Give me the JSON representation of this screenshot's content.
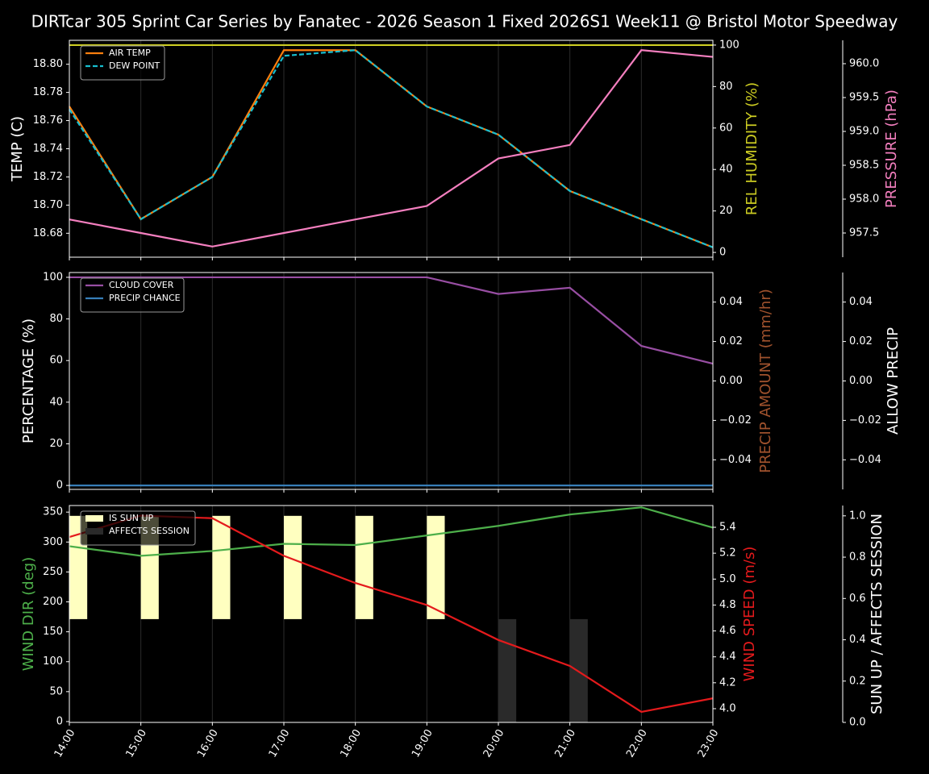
{
  "chart_data": [
    {
      "type": "line",
      "title": "DIRTcar 305 Sprint Car Series by Fanatec - 2026 Season 1 Fixed 2026S1 Week11 @ Bristol Motor Speedway",
      "ylabel": "TEMP (C)",
      "ylabel_color": "#ffffff",
      "y2label": "REL HUMIDITY (%)",
      "y2label_color": "#cccc22",
      "y3label": "PRESSURE (hPa)",
      "y3label_color": "#f47fbf",
      "ylim": [
        18.663,
        18.817
      ],
      "yticks": [
        18.68,
        {
          "value": 18.7,
          "label": "18.70"
        },
        18.72,
        18.74,
        18.76,
        18.78,
        {
          "value": 18.8,
          "label": "18.80"
        }
      ],
      "y2lim": [
        -2.3,
        102.3
      ],
      "y2ticks": [
        0,
        20,
        40,
        60,
        80,
        100
      ],
      "y3lim": [
        957.143,
        960.345
      ],
      "y3ticks": [
        957.5,
        {
          "value": 958,
          "label": "958.0"
        },
        958.5,
        {
          "value": 959,
          "label": "959.0"
        },
        959.5,
        {
          "value": 960,
          "label": "960.0"
        }
      ],
      "grid": "x",
      "legend": "upper left",
      "series": [
        {
          "name": "AIR TEMP",
          "color": "#ff7f0e",
          "values": [
            18.77,
            18.69,
            18.72,
            18.81,
            18.81,
            18.77,
            18.75,
            18.71,
            18.69,
            18.67
          ]
        },
        {
          "name": "DEW POINT",
          "color": "#17becf",
          "dashed": true,
          "values": [
            18.768,
            18.69,
            18.72,
            18.806,
            18.81,
            18.77,
            18.75,
            18.71,
            18.69,
            18.67
          ]
        },
        {
          "color": "#cccc22",
          "axis": "y2",
          "values": [
            100,
            100,
            100,
            100,
            100,
            100,
            100,
            100,
            100,
            100
          ]
        },
        {
          "color": "#f47fbf",
          "axis": "y3",
          "values": [
            957.7,
            957.5,
            957.3,
            957.5,
            957.7,
            957.9,
            958.6,
            958.8,
            960.2,
            960.1
          ]
        }
      ]
    },
    {
      "type": "line",
      "ylabel": "PERCENTAGE (%)",
      "ylabel_color": "#ffffff",
      "y2label": "PRECIP AMOUNT (mm/hr)",
      "y2label_color": "#a0522d",
      "y3label": "ALLOW PRECIP",
      "y3label_color": "#ffffff",
      "ylim": [
        -1.9,
        102.3
      ],
      "yticks": [
        0,
        20,
        40,
        60,
        80,
        100
      ],
      "y2lim": [
        -0.055,
        0.055
      ],
      "y2ticks": [
        {
          "value": -0.04,
          "label": "−0.04"
        },
        {
          "value": -0.02,
          "label": "−0.02"
        },
        {
          "value": 0,
          "label": "0.00"
        },
        0.02,
        0.04
      ],
      "y3lim": [
        -0.055,
        0.055
      ],
      "y3ticks": [
        {
          "value": -0.04,
          "label": "−0.04"
        },
        {
          "value": -0.02,
          "label": "−0.02"
        },
        {
          "value": 0,
          "label": "0.00"
        },
        0.02,
        0.04
      ],
      "grid": "x",
      "legend": "upper left",
      "series": [
        {
          "name": "CLOUD COVER",
          "color": "#984ea3",
          "values": [
            100,
            100,
            100,
            100,
            100,
            100,
            92,
            95,
            67,
            58.5
          ]
        },
        {
          "name": "PRECIP CHANCE",
          "color": "#377eb8",
          "values": [
            0,
            0,
            0,
            0,
            0,
            0,
            0,
            0,
            0,
            0
          ]
        }
      ]
    },
    {
      "type": "line",
      "categories": [
        "14:00",
        "15:00",
        "16:00",
        "17:00",
        "18:00",
        "19:00",
        "20:00",
        "21:00",
        "22:00",
        "23:00"
      ],
      "ylabel": "WIND DIR (deg)",
      "ylabel_color": "#4daf4a",
      "y2label": "WIND SPEED (m/s)",
      "y2label_color": "#e41a1c",
      "y3label": "SUN UP / AFFECTS SESSION",
      "y3label_color": "#ffffff",
      "ylim": [
        -1.4,
        361
      ],
      "yticks": [
        0,
        50,
        100,
        150,
        200,
        250,
        300,
        350
      ],
      "y2lim": [
        3.894,
        5.568
      ],
      "y2ticks": [
        {
          "value": 4,
          "label": "4.0"
        },
        4.2,
        4.4,
        4.6,
        4.8,
        {
          "value": 5,
          "label": "5.0"
        },
        5.2,
        5.4
      ],
      "y3lim": [
        0,
        1.05
      ],
      "y3ticks": [
        {
          "value": 0,
          "label": "0.0"
        },
        0.2,
        0.4,
        0.6,
        0.8,
        {
          "value": 1,
          "label": "1.0"
        }
      ],
      "grid": "x",
      "legend": "upper left",
      "series": [
        {
          "name": "IS SUN UP",
          "type": "bar",
          "color": "#ffffc0",
          "axis": "y3",
          "base": 0.5,
          "values": [
            0.5,
            0.5,
            0.5,
            0.5,
            0.5,
            0.5,
            0,
            0,
            0,
            0
          ]
        },
        {
          "name": "AFFECTS SESSION",
          "type": "bar",
          "color": "#2a2a2a",
          "axis": "y3",
          "values": [
            0,
            0,
            0,
            0,
            0,
            0,
            0.5,
            0.5,
            0,
            0
          ]
        },
        {
          "color": "#4daf4a",
          "values": [
            293,
            277,
            285,
            297,
            295,
            311,
            327,
            346,
            358,
            324
          ]
        },
        {
          "color": "#e41a1c",
          "axis": "y2",
          "values": [
            5.325,
            5.49,
            5.47,
            5.18,
            4.97,
            4.8,
            4.53,
            4.33,
            3.975,
            4.08
          ]
        }
      ]
    }
  ]
}
